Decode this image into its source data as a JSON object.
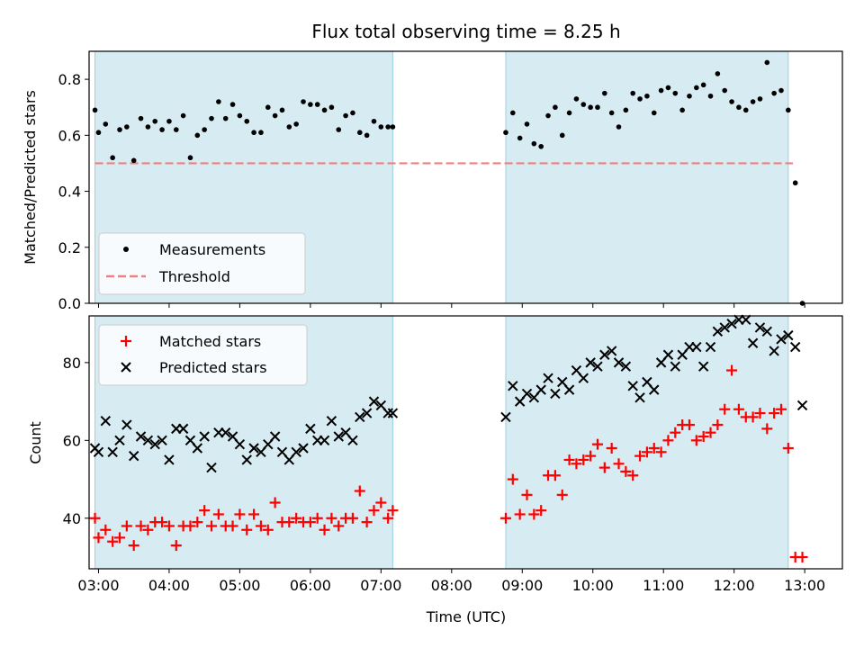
{
  "chart_data": [
    {
      "type": "scatter",
      "title": "Flux total observing time = 8.25 h",
      "ylabel": "Matched/Predicted stars",
      "xlabel": "",
      "ylim": [
        0,
        0.9
      ],
      "xlim": [
        "02:52",
        "13:32"
      ],
      "yticks": [
        0.0,
        0.2,
        0.4,
        0.6,
        0.8
      ],
      "ytick_labels": [
        "0.0",
        "0.2",
        "0.4",
        "0.6",
        "0.8"
      ],
      "grid": false,
      "legend_position": "lower-left",
      "observing_windows": [
        [
          "02:57",
          "07:10"
        ],
        [
          "08:46",
          "12:46"
        ]
      ],
      "series": [
        {
          "name": "Measurements",
          "kind": "scatter",
          "marker": "dot",
          "color": "#000000",
          "x": [
            "02:57",
            "03:00",
            "03:06",
            "03:12",
            "03:18",
            "03:24",
            "03:30",
            "03:36",
            "03:42",
            "03:48",
            "03:54",
            "04:00",
            "04:06",
            "04:12",
            "04:18",
            "04:24",
            "04:30",
            "04:36",
            "04:42",
            "04:48",
            "04:54",
            "05:00",
            "05:06",
            "05:12",
            "05:18",
            "05:24",
            "05:30",
            "05:36",
            "05:42",
            "05:48",
            "05:54",
            "06:00",
            "06:06",
            "06:12",
            "06:18",
            "06:24",
            "06:30",
            "06:36",
            "06:42",
            "06:48",
            "06:54",
            "07:00",
            "07:06",
            "07:10",
            "08:46",
            "08:52",
            "08:58",
            "09:04",
            "09:10",
            "09:16",
            "09:22",
            "09:28",
            "09:34",
            "09:40",
            "09:46",
            "09:52",
            "09:58",
            "10:04",
            "10:10",
            "10:16",
            "10:22",
            "10:28",
            "10:34",
            "10:40",
            "10:46",
            "10:52",
            "10:58",
            "11:04",
            "11:10",
            "11:16",
            "11:22",
            "11:28",
            "11:34",
            "11:40",
            "11:46",
            "11:52",
            "11:58",
            "12:04",
            "12:10",
            "12:16",
            "12:22",
            "12:28",
            "12:34",
            "12:40",
            "12:46",
            "12:52",
            "12:58"
          ],
          "y": [
            0.69,
            0.61,
            0.64,
            0.52,
            0.62,
            0.63,
            0.51,
            0.66,
            0.63,
            0.65,
            0.62,
            0.65,
            0.62,
            0.67,
            0.52,
            0.6,
            0.62,
            0.66,
            0.72,
            0.66,
            0.71,
            0.67,
            0.65,
            0.61,
            0.61,
            0.7,
            0.67,
            0.69,
            0.63,
            0.64,
            0.72,
            0.71,
            0.71,
            0.69,
            0.7,
            0.62,
            0.67,
            0.68,
            0.61,
            0.6,
            0.65,
            0.63,
            0.63,
            0.63,
            0.61,
            0.68,
            0.59,
            0.64,
            0.57,
            0.56,
            0.67,
            0.7,
            0.6,
            0.68,
            0.73,
            0.71,
            0.7,
            0.7,
            0.75,
            0.68,
            0.63,
            0.69,
            0.75,
            0.73,
            0.74,
            0.68,
            0.76,
            0.77,
            0.75,
            0.69,
            0.74,
            0.77,
            0.78,
            0.74,
            0.82,
            0.76,
            0.72,
            0.7,
            0.69,
            0.72,
            0.73,
            0.86,
            0.75,
            0.76,
            0.69,
            0.43,
            0.0
          ]
        },
        {
          "name": "Threshold",
          "kind": "line",
          "style": "dashed",
          "color": "#f08080",
          "x": [
            "02:57",
            "12:50"
          ],
          "y": [
            0.5,
            0.5
          ]
        }
      ]
    },
    {
      "type": "scatter",
      "title": "",
      "ylabel": "Count",
      "xlabel": "Time (UTC)",
      "ylim": [
        27,
        92
      ],
      "xlim": [
        "02:52",
        "13:32"
      ],
      "yticks": [
        40,
        60,
        80
      ],
      "ytick_labels": [
        "40",
        "60",
        "80"
      ],
      "xticks": [
        "03:00",
        "04:00",
        "05:00",
        "06:00",
        "07:00",
        "08:00",
        "09:00",
        "10:00",
        "11:00",
        "12:00",
        "13:00"
      ],
      "xtick_labels": [
        "03:00",
        "04:00",
        "05:00",
        "06:00",
        "07:00",
        "08:00",
        "09:00",
        "10:00",
        "11:00",
        "12:00",
        "13:00"
      ],
      "grid": false,
      "legend_position": "upper-left",
      "observing_windows": [
        [
          "02:57",
          "07:10"
        ],
        [
          "08:46",
          "12:46"
        ]
      ],
      "series": [
        {
          "name": "Matched stars",
          "kind": "scatter",
          "marker": "plus",
          "color": "#ff0000",
          "x": [
            "02:57",
            "03:00",
            "03:06",
            "03:12",
            "03:18",
            "03:24",
            "03:30",
            "03:36",
            "03:42",
            "03:48",
            "03:54",
            "04:00",
            "04:06",
            "04:12",
            "04:18",
            "04:24",
            "04:30",
            "04:36",
            "04:42",
            "04:48",
            "04:54",
            "05:00",
            "05:06",
            "05:12",
            "05:18",
            "05:24",
            "05:30",
            "05:36",
            "05:42",
            "05:48",
            "05:54",
            "06:00",
            "06:06",
            "06:12",
            "06:18",
            "06:24",
            "06:30",
            "06:36",
            "06:42",
            "06:48",
            "06:54",
            "07:00",
            "07:06",
            "07:10",
            "08:46",
            "08:52",
            "08:58",
            "09:04",
            "09:10",
            "09:16",
            "09:22",
            "09:28",
            "09:34",
            "09:40",
            "09:46",
            "09:52",
            "09:58",
            "10:04",
            "10:10",
            "10:16",
            "10:22",
            "10:28",
            "10:34",
            "10:40",
            "10:46",
            "10:52",
            "10:58",
            "11:04",
            "11:10",
            "11:16",
            "11:22",
            "11:28",
            "11:34",
            "11:40",
            "11:46",
            "11:52",
            "11:58",
            "12:04",
            "12:10",
            "12:16",
            "12:22",
            "12:28",
            "12:34",
            "12:40",
            "12:46",
            "12:52",
            "12:58"
          ],
          "y": [
            40,
            35,
            37,
            34,
            35,
            38,
            33,
            38,
            37,
            39,
            39,
            38,
            33,
            38,
            38,
            39,
            42,
            38,
            41,
            38,
            38,
            41,
            37,
            41,
            38,
            37,
            44,
            39,
            39,
            40,
            39,
            39,
            40,
            37,
            40,
            38,
            40,
            40,
            47,
            39,
            42,
            44,
            40,
            42,
            40,
            50,
            41,
            46,
            41,
            42,
            51,
            51,
            46,
            55,
            54,
            55,
            56,
            59,
            53,
            58,
            54,
            52,
            51,
            56,
            57,
            58,
            57,
            60,
            62,
            64,
            64,
            60,
            61,
            62,
            64,
            68,
            78,
            68,
            66,
            66,
            67,
            63,
            67,
            68,
            58,
            30,
            30
          ]
        },
        {
          "name": "Predicted stars",
          "kind": "scatter",
          "marker": "cross",
          "color": "#000000",
          "x": [
            "02:57",
            "03:00",
            "03:06",
            "03:12",
            "03:18",
            "03:24",
            "03:30",
            "03:36",
            "03:42",
            "03:48",
            "03:54",
            "04:00",
            "04:06",
            "04:12",
            "04:18",
            "04:24",
            "04:30",
            "04:36",
            "04:42",
            "04:48",
            "04:54",
            "05:00",
            "05:06",
            "05:12",
            "05:18",
            "05:24",
            "05:30",
            "05:36",
            "05:42",
            "05:48",
            "05:54",
            "06:00",
            "06:06",
            "06:12",
            "06:18",
            "06:24",
            "06:30",
            "06:36",
            "06:42",
            "06:48",
            "06:54",
            "07:00",
            "07:06",
            "07:10",
            "08:46",
            "08:52",
            "08:58",
            "09:04",
            "09:10",
            "09:16",
            "09:22",
            "09:28",
            "09:34",
            "09:40",
            "09:46",
            "09:52",
            "09:58",
            "10:04",
            "10:10",
            "10:16",
            "10:22",
            "10:28",
            "10:34",
            "10:40",
            "10:46",
            "10:52",
            "10:58",
            "11:04",
            "11:10",
            "11:16",
            "11:22",
            "11:28",
            "11:34",
            "11:40",
            "11:46",
            "11:52",
            "11:58",
            "12:04",
            "12:10",
            "12:16",
            "12:22",
            "12:28",
            "12:34",
            "12:40",
            "12:46",
            "12:52",
            "12:58"
          ],
          "y": [
            58,
            57,
            65,
            57,
            60,
            64,
            56,
            61,
            60,
            59,
            60,
            55,
            63,
            63,
            60,
            58,
            61,
            53,
            62,
            62,
            61,
            59,
            55,
            58,
            57,
            59,
            61,
            57,
            55,
            57,
            58,
            63,
            60,
            60,
            65,
            61,
            62,
            60,
            66,
            67,
            70,
            69,
            67,
            67,
            66,
            74,
            70,
            72,
            71,
            73,
            76,
            72,
            75,
            73,
            78,
            76,
            80,
            79,
            82,
            83,
            80,
            79,
            74,
            71,
            75,
            73,
            80,
            82,
            79,
            82,
            84,
            84,
            79,
            84,
            88,
            89,
            90,
            91,
            91,
            85,
            89,
            88,
            83,
            86,
            87,
            84,
            69
          ]
        }
      ]
    }
  ]
}
